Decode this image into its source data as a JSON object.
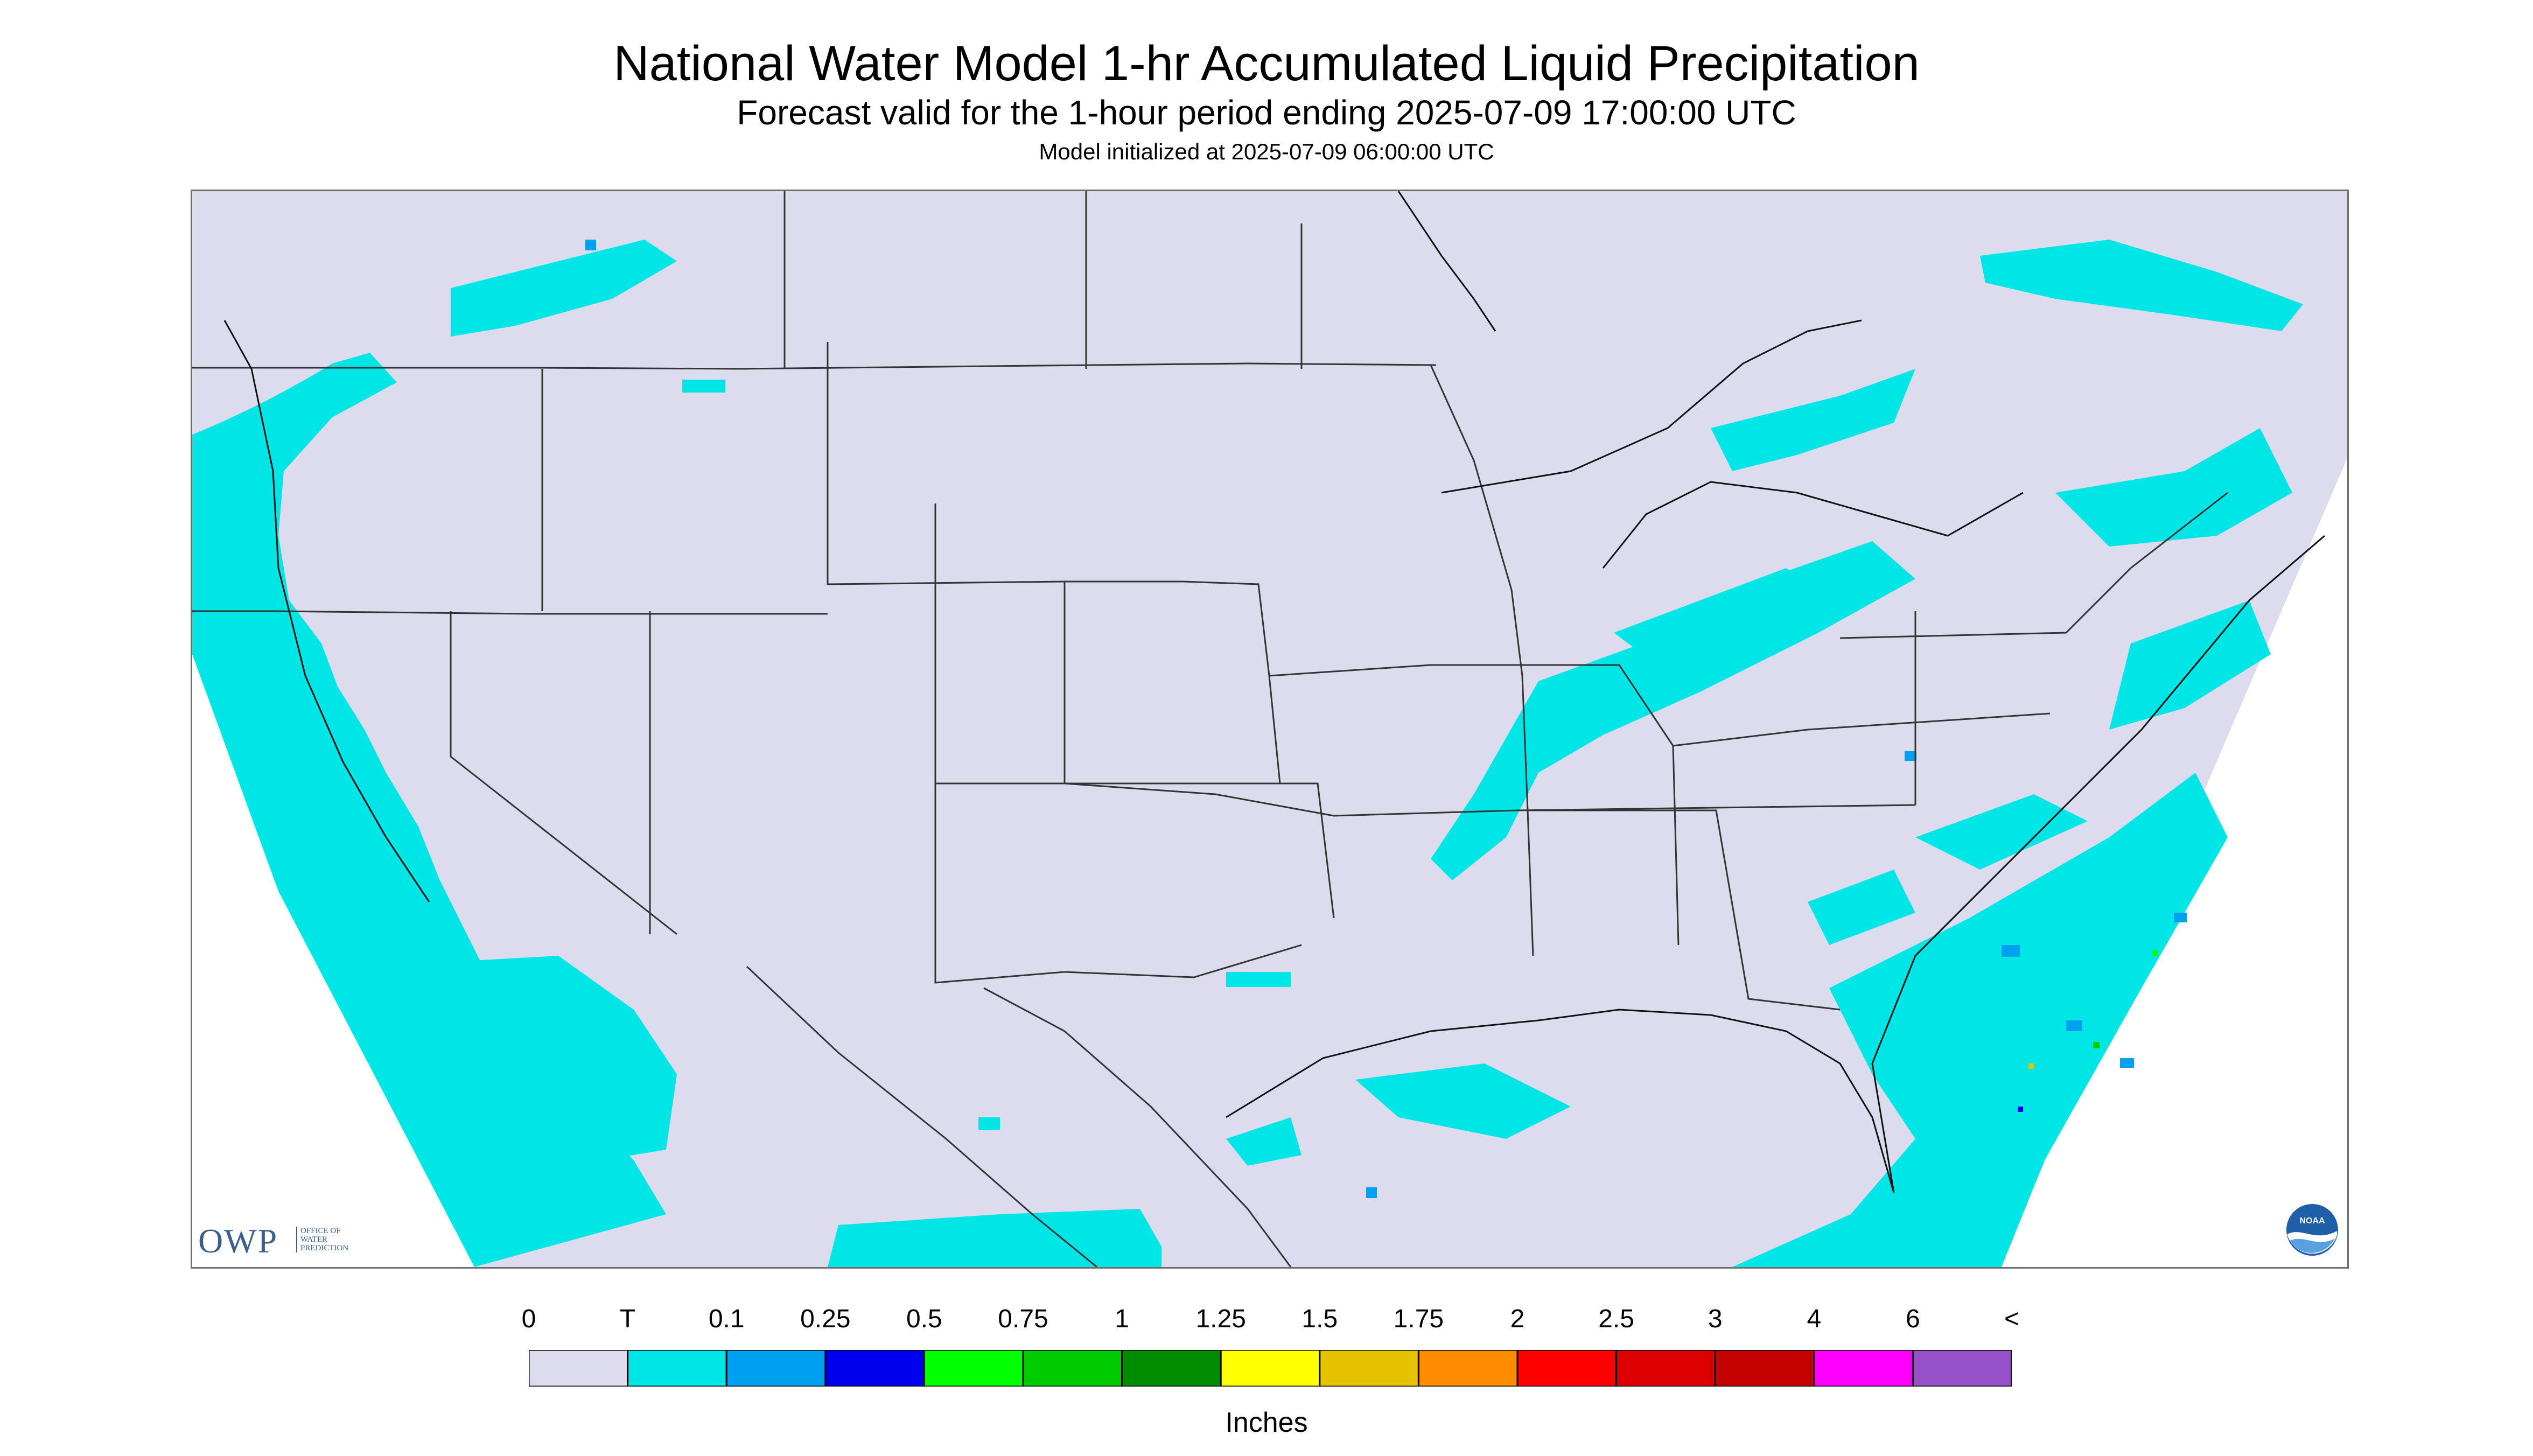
{
  "header": {
    "title": "National Water Model 1-hr Accumulated Liquid Precipitation",
    "subtitle": "Forecast valid for the 1-hour period ending 2025-07-09 17:00:00 UTC",
    "init_line": "Model initialized at 2025-07-09 06:00:00 UTC"
  },
  "map": {
    "background_color": "#dcdcee",
    "outside_domain_color": "#ffffff",
    "boundary_color": "#333333",
    "precip_trace_color": "#00e6e6"
  },
  "logos": {
    "owp_big": "OWP",
    "owp_small": [
      "OFFICE OF",
      "WATER",
      "PREDICTION"
    ],
    "noaa_text": "NOAA"
  },
  "legend": {
    "units": "Inches",
    "ticks": [
      "0",
      "T",
      "0.1",
      "0.25",
      "0.5",
      "0.75",
      "1",
      "1.25",
      "1.5",
      "1.75",
      "2",
      "2.5",
      "3",
      "4",
      "6",
      "<"
    ],
    "colors": [
      "#dcdcee",
      "#00e6e6",
      "#00a0f0",
      "#0000ee",
      "#00ff00",
      "#00cc00",
      "#008c00",
      "#ffff00",
      "#e6c300",
      "#ff8c00",
      "#ff0000",
      "#dd0000",
      "#c40000",
      "#ff00ff",
      "#9650c8"
    ]
  }
}
